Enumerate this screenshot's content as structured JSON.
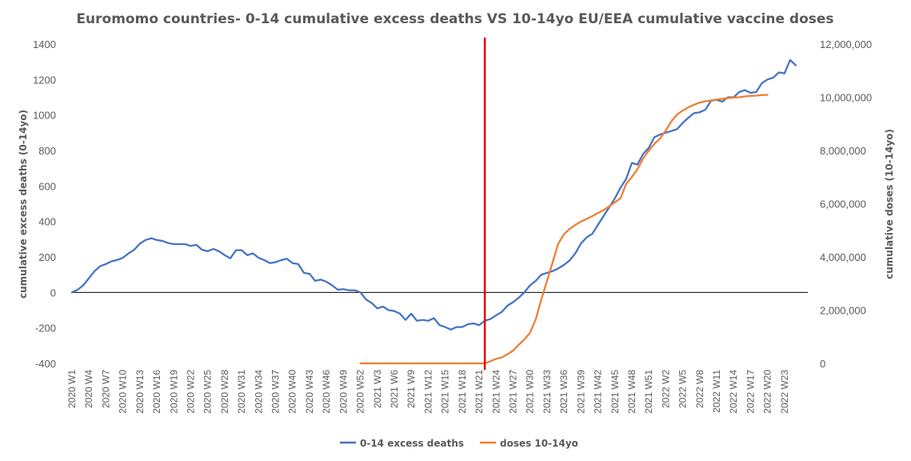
{
  "chart_data": {
    "type": "line",
    "title": "Euromomo  countries- 0-14 cumulative  excess deaths VS 10-14yo EU/EEA cumulative vaccine doses",
    "ylabel_left": "cumulative excess deaths (0-14yo)",
    "ylabel_right": "cumulative doses (10-14yo)",
    "ylim_left": [
      -400,
      1400
    ],
    "yticks_left": [
      "-400",
      "-200",
      "0",
      "200",
      "400",
      "600",
      "800",
      "1000",
      "1200",
      "1400"
    ],
    "ylim_right": [
      0,
      12000000
    ],
    "yticks_right": [
      "0",
      "2,000,000",
      "4,000,000",
      "6,000,000",
      "8,000,000",
      "10,000,000",
      "12,000,000"
    ],
    "x_tick_labels": [
      "2020 W1",
      "2020 W4",
      "2020 W7",
      "2020 W10",
      "2020 W13",
      "2020 W16",
      "2020 W19",
      "2020 W22",
      "2020 W25",
      "2020 W28",
      "2020 W31",
      "2020 W34",
      "2020 W37",
      "2020 W40",
      "2020 W43",
      "2020 W46",
      "2020 W49",
      "2020 W52",
      "2021 W3",
      "2021 W6",
      "2021 W9",
      "2021 W12",
      "2021 W15",
      "2021 W18",
      "2021 W21",
      "2021 W24",
      "2021 W27",
      "2021 W30",
      "2021 W33",
      "2021 W36",
      "2021 W39",
      "2021 W42",
      "2021 W45",
      "2021 W48",
      "2021 W51",
      "2022 W2",
      "2022 W5",
      "2022 W8",
      "2022 W11",
      "2022 W14",
      "2022 W17",
      "2022 W20",
      "2022 W23"
    ],
    "vertical_marker_week_index": 73,
    "series": [
      {
        "name": "0-14 excess deaths",
        "color": "#4472C4",
        "axis": "left",
        "start_week_index": 0,
        "values": [
          0,
          15,
          40,
          80,
          120,
          148,
          160,
          175,
          183,
          195,
          220,
          240,
          275,
          295,
          305,
          295,
          290,
          278,
          272,
          272,
          272,
          262,
          268,
          240,
          232,
          245,
          232,
          210,
          192,
          238,
          238,
          210,
          220,
          195,
          182,
          165,
          170,
          182,
          190,
          165,
          160,
          110,
          105,
          65,
          72,
          60,
          40,
          15,
          18,
          12,
          12,
          0,
          -40,
          -60,
          -90,
          -80,
          -100,
          -105,
          -120,
          -155,
          -120,
          -160,
          -155,
          -160,
          -145,
          -185,
          -195,
          -210,
          -195,
          -195,
          -180,
          -175,
          -185,
          -160,
          -150,
          -130,
          -110,
          -75,
          -55,
          -30,
          0,
          40,
          65,
          100,
          110,
          120,
          135,
          155,
          180,
          220,
          275,
          310,
          330,
          380,
          430,
          480,
          530,
          590,
          640,
          730,
          720,
          780,
          815,
          875,
          890,
          900,
          910,
          920,
          955,
          985,
          1010,
          1015,
          1030,
          1080,
          1085,
          1075,
          1100,
          1100,
          1130,
          1140,
          1125,
          1130,
          1180,
          1200,
          1210,
          1240,
          1235,
          1310,
          1280
        ]
      },
      {
        "name": "doses 10-14yo",
        "color": "#ED7D31",
        "axis": "right",
        "start_week_index": 51,
        "values": [
          0,
          0,
          0,
          0,
          0,
          0,
          0,
          0,
          0,
          0,
          0,
          0,
          0,
          0,
          0,
          0,
          0,
          0,
          0,
          0,
          0,
          0,
          0,
          80000,
          170000,
          220000,
          340000,
          480000,
          700000,
          900000,
          1150000,
          1650000,
          2400000,
          3100000,
          3800000,
          4500000,
          4850000,
          5050000,
          5200000,
          5330000,
          5430000,
          5530000,
          5650000,
          5760000,
          5900000,
          6050000,
          6200000,
          6750000,
          7000000,
          7300000,
          7700000,
          8000000,
          8250000,
          8450000,
          8750000,
          9100000,
          9350000,
          9500000,
          9620000,
          9720000,
          9800000,
          9850000,
          9880000,
          9910000,
          9940000,
          9970000,
          9990000,
          10000000,
          10030000,
          10050000,
          10060000,
          10080000,
          10090000
        ]
      }
    ],
    "grid": false,
    "legend_position": "bottom"
  }
}
